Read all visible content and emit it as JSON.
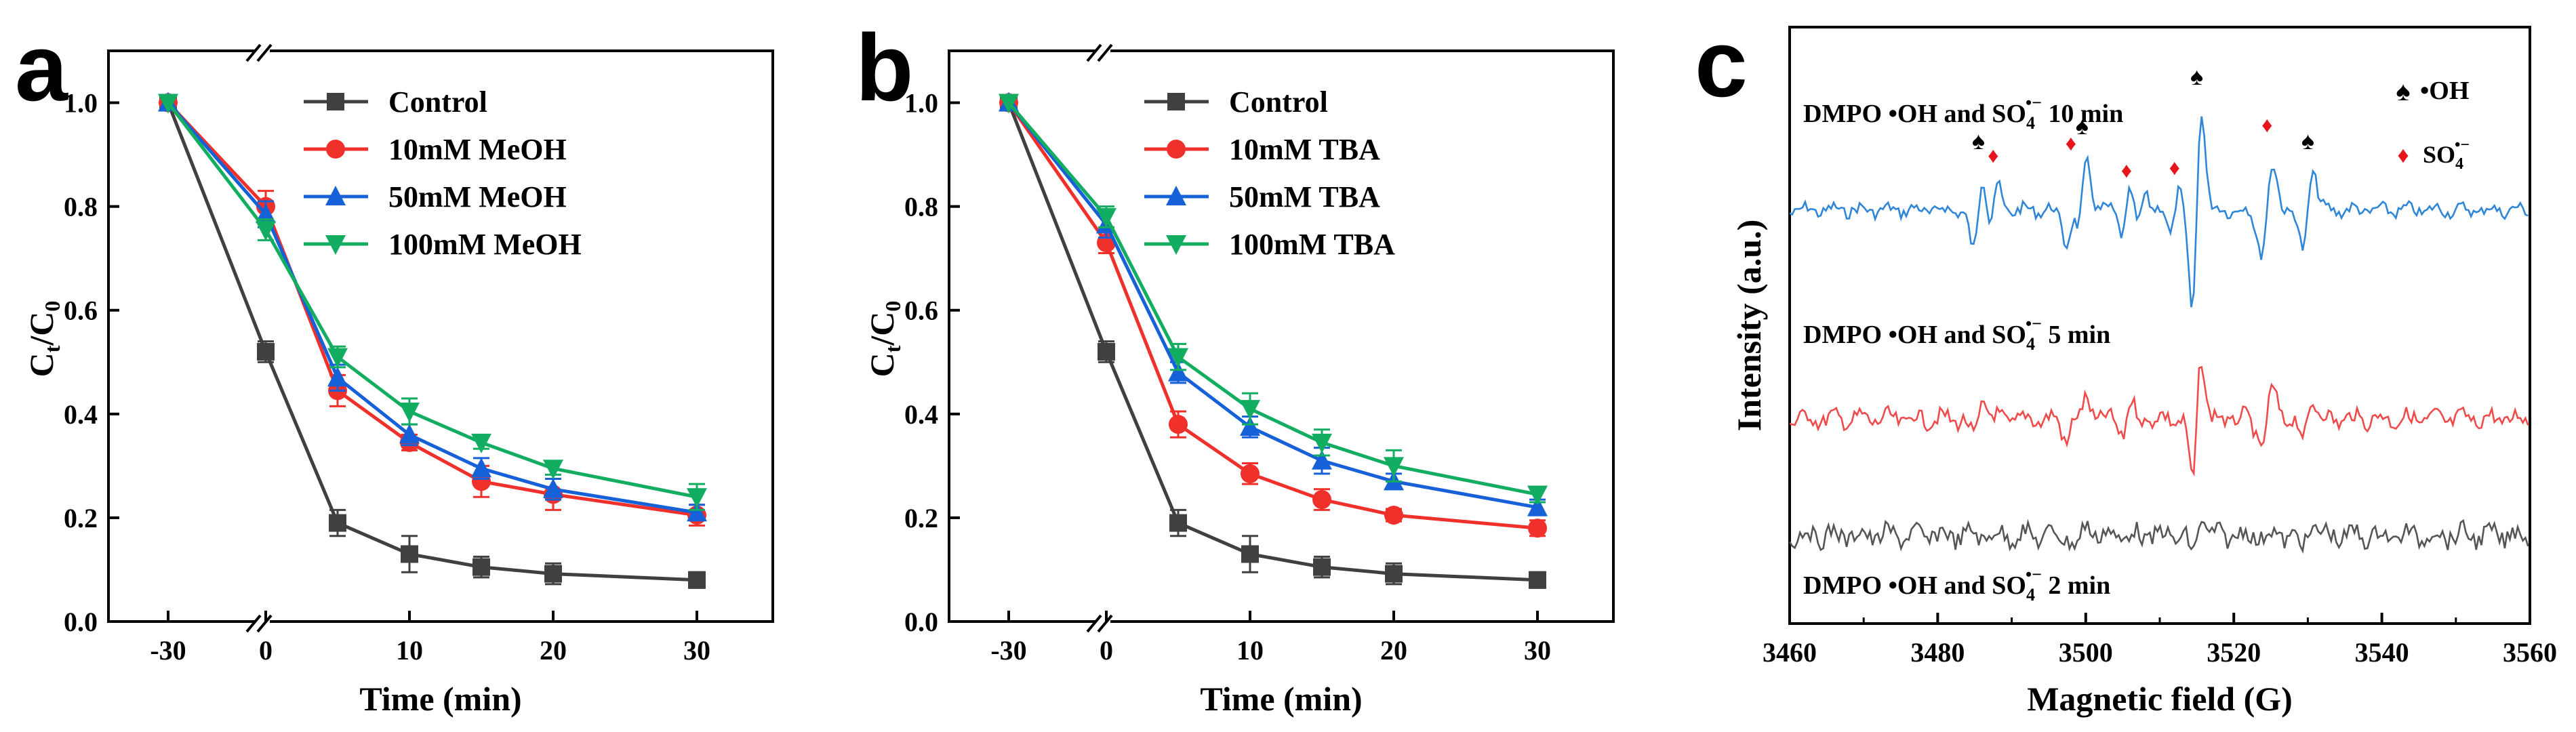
{
  "colors": {
    "control": "#404040",
    "red": "#f0302a",
    "blue": "#1660d8",
    "green": "#13ad62",
    "spectrum_blue": "#2f86d8",
    "spectrum_red": "#ef4b4b",
    "spectrum_gray": "#555555",
    "spade": "#000000",
    "diamond": "#e8141c"
  },
  "chart_data": [
    {
      "type": "line",
      "panel_label": "a",
      "xlabel": "Time (min)",
      "ylabel_main": "C",
      "ylabel_sub1": "t",
      "ylabel_sep": "/C",
      "ylabel_sub2": "0",
      "x_ticks": [
        "-30",
        "0",
        "10",
        "20",
        "30"
      ],
      "y_ticks": [
        "0.0",
        "0.2",
        "0.4",
        "0.6",
        "0.8",
        "1.0"
      ],
      "ylim": [
        0,
        1.1
      ],
      "x": [
        -30,
        0,
        5,
        10,
        15,
        20,
        30
      ],
      "series": [
        {
          "name": "Control",
          "marker": "square",
          "color_key": "control",
          "values": [
            1.0,
            0.52,
            0.19,
            0.13,
            0.105,
            0.092,
            0.08
          ],
          "errors": [
            0,
            0.02,
            0.025,
            0.035,
            0.02,
            0.02,
            0.015
          ]
        },
        {
          "name": "10mM MeOH",
          "marker": "circle",
          "color_key": "red",
          "values": [
            1.0,
            0.8,
            0.445,
            0.345,
            0.27,
            0.245,
            0.205
          ],
          "errors": [
            0,
            0.03,
            0.03,
            0.015,
            0.03,
            0.03,
            0.02
          ]
        },
        {
          "name": "50mM MeOH",
          "marker": "triangle-up",
          "color_key": "blue",
          "values": [
            1.0,
            0.785,
            0.47,
            0.36,
            0.295,
            0.255,
            0.21
          ],
          "errors": [
            0,
            0.025,
            0.025,
            0.02,
            0.02,
            0.02,
            0.015
          ]
        },
        {
          "name": "100mM MeOH",
          "marker": "triangle-down",
          "color_key": "green",
          "values": [
            1.0,
            0.755,
            0.51,
            0.405,
            0.345,
            0.295,
            0.24
          ],
          "errors": [
            0,
            0.02,
            0.02,
            0.025,
            0.012,
            0.012,
            0.025
          ]
        }
      ]
    },
    {
      "type": "line",
      "panel_label": "b",
      "xlabel": "Time (min)",
      "ylabel_main": "C",
      "ylabel_sub1": "t",
      "ylabel_sep": "/C",
      "ylabel_sub2": "0",
      "x_ticks": [
        "-30",
        "0",
        "10",
        "20",
        "30"
      ],
      "y_ticks": [
        "0.0",
        "0.2",
        "0.4",
        "0.6",
        "0.8",
        "1.0"
      ],
      "ylim": [
        0,
        1.1
      ],
      "x": [
        -30,
        0,
        5,
        10,
        15,
        20,
        30
      ],
      "series": [
        {
          "name": "Control",
          "marker": "square",
          "color_key": "control",
          "values": [
            1.0,
            0.52,
            0.19,
            0.13,
            0.105,
            0.092,
            0.08
          ],
          "errors": [
            0,
            0.02,
            0.025,
            0.035,
            0.02,
            0.02,
            0.015
          ]
        },
        {
          "name": "10mM TBA",
          "marker": "circle",
          "color_key": "red",
          "values": [
            1.0,
            0.73,
            0.38,
            0.285,
            0.235,
            0.205,
            0.18
          ],
          "errors": [
            0,
            0.02,
            0.025,
            0.02,
            0.02,
            0.012,
            0.015
          ]
        },
        {
          "name": "50mM TBA",
          "marker": "triangle-up",
          "color_key": "blue",
          "values": [
            1.0,
            0.765,
            0.48,
            0.375,
            0.31,
            0.27,
            0.22
          ],
          "errors": [
            0,
            0.025,
            0.02,
            0.02,
            0.025,
            0.015,
            0.015
          ]
        },
        {
          "name": "100mM TBA",
          "marker": "triangle-down",
          "color_key": "green",
          "values": [
            1.0,
            0.78,
            0.51,
            0.41,
            0.345,
            0.3,
            0.245
          ],
          "errors": [
            0,
            0.02,
            0.025,
            0.03,
            0.025,
            0.03,
            0.015
          ]
        }
      ]
    },
    {
      "type": "line",
      "panel_label": "c",
      "xlabel": "Magnetic field (G)",
      "ylabel": "Intensity (a.u.)",
      "x_ticks": [
        "3460",
        "3480",
        "3500",
        "3520",
        "3540",
        "3560"
      ],
      "xlim": [
        3460,
        3560
      ],
      "spectra": [
        {
          "label_pre": "DMPO •OH and SO",
          "label_sub": "4",
          "label_sup": "•−",
          "label_post": " 10 min",
          "color_key": "spectrum_blue"
        },
        {
          "label_pre": "DMPO •OH and SO",
          "label_sub": "4",
          "label_sup": "•−",
          "label_post": " 5 min",
          "color_key": "spectrum_red"
        },
        {
          "label_pre": "DMPO •OH and SO",
          "label_sub": "4",
          "label_sup": "•−",
          "label_post": " 2 min",
          "color_key": "spectrum_gray"
        }
      ],
      "legend": {
        "spade_label": "•OH",
        "diamond_label_main": "SO",
        "diamond_label_sub": "4",
        "diamond_label_sup": "•−"
      },
      "spade_fields": [
        3485.5,
        3499.5,
        3515,
        3530
      ],
      "diamond_fields": [
        3487.5,
        3498,
        3505.5,
        3512,
        3524.5
      ]
    }
  ]
}
